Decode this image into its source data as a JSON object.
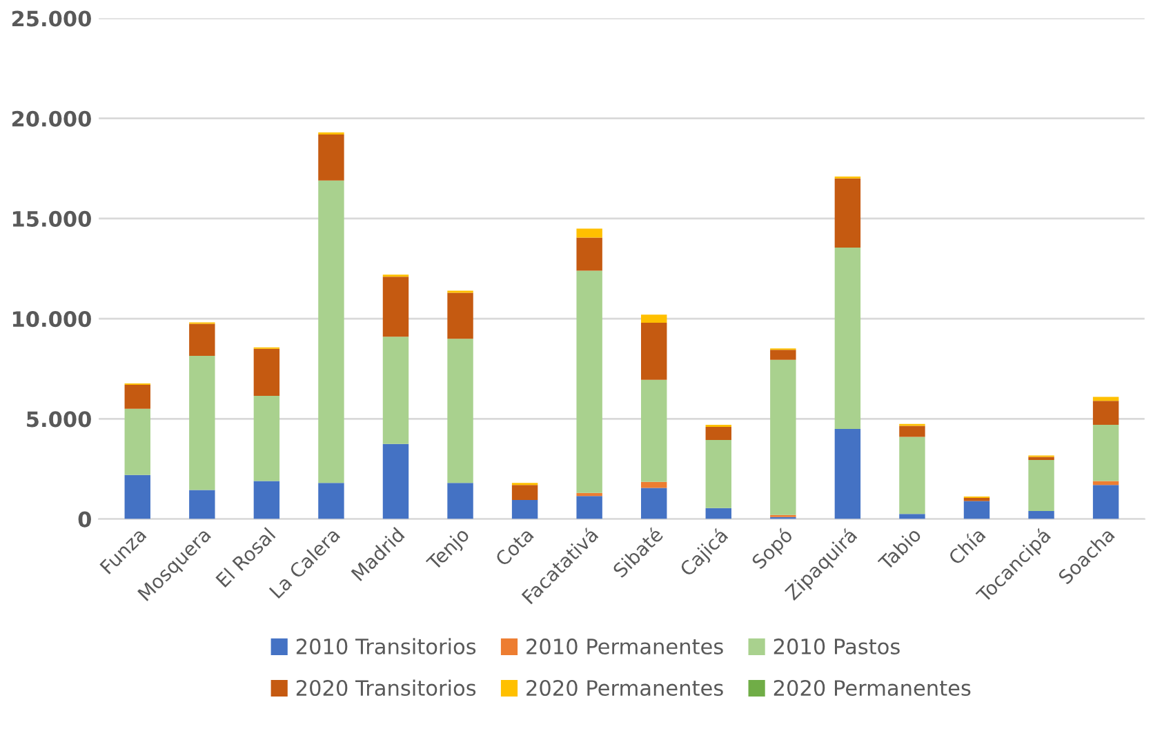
{
  "chart_data": {
    "type": "bar",
    "stacked": true,
    "categories": [
      "Funza",
      "Mosquera",
      "El Rosal",
      "La Calera",
      "Madrid",
      "Tenjo",
      "Cota",
      "Facatativá",
      "Sibaté",
      "Cajicá",
      "Sopó",
      "Zipaquirá",
      "Tabio",
      "Chía",
      "Tocancipá",
      "Soacha"
    ],
    "series": [
      {
        "name": "2010 Transitorios",
        "color": "#4472c4",
        "values": [
          2200,
          1450,
          1900,
          1800,
          3750,
          1800,
          950,
          1150,
          1550,
          550,
          100,
          4500,
          250,
          900,
          400,
          1700
        ]
      },
      {
        "name": "2010 Permanentes",
        "color": "#ed7d31",
        "values": [
          null,
          null,
          null,
          null,
          null,
          null,
          null,
          150,
          300,
          null,
          100,
          null,
          null,
          null,
          null,
          200
        ]
      },
      {
        "name": "2010 Pastos",
        "color": "#a9d18e",
        "values": [
          3300,
          6700,
          4250,
          15100,
          5350,
          7200,
          null,
          11100,
          5100,
          3400,
          7750,
          9050,
          3850,
          null,
          2550,
          2800
        ]
      },
      {
        "name": "2020 Transitorios",
        "color": "#c55a11",
        "values": [
          1200,
          1600,
          2350,
          2300,
          3000,
          2300,
          750,
          1650,
          2850,
          650,
          500,
          3450,
          550,
          150,
          150,
          1200
        ]
      },
      {
        "name": "2020 Permanentes",
        "color": "#ffc000",
        "values": [
          70,
          70,
          70,
          100,
          100,
          100,
          100,
          450,
          400,
          100,
          70,
          100,
          100,
          70,
          70,
          200
        ]
      },
      {
        "name": "2020 Permanentes",
        "color": "#70ad47",
        "values": [
          null,
          null,
          null,
          null,
          null,
          null,
          null,
          null,
          null,
          null,
          null,
          null,
          null,
          null,
          null,
          null
        ]
      }
    ],
    "ylim": [
      0,
      25000
    ],
    "yticks": [
      {
        "value": 0,
        "label": "0"
      },
      {
        "value": 5000,
        "label": "5.000"
      },
      {
        "value": 10000,
        "label": "10.000"
      },
      {
        "value": 15000,
        "label": "15.000"
      },
      {
        "value": 20000,
        "label": "20.000"
      },
      {
        "value": 25000,
        "label": "25.000"
      }
    ],
    "grid": "y",
    "legend": "bottom"
  }
}
